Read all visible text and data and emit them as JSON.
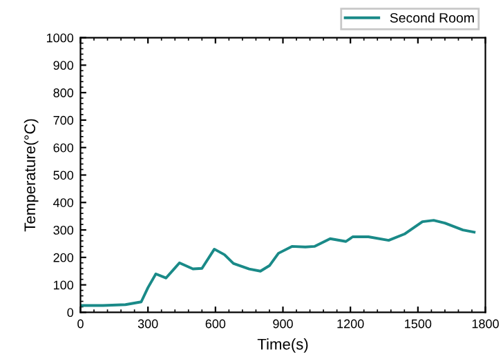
{
  "chart_data": {
    "type": "line",
    "xlabel": "Time(s)",
    "ylabel": "Temperature(°C)",
    "xlim": [
      0,
      1800
    ],
    "xticks": [
      0,
      300,
      600,
      900,
      1200,
      1500,
      1800
    ],
    "ylim": [
      0,
      1000
    ],
    "yticks": [
      0,
      100,
      200,
      300,
      400,
      500,
      600,
      700,
      800,
      900,
      1000
    ],
    "grid": false,
    "legend": "top right",
    "marker": "none",
    "line_style": "solid",
    "series": [
      {
        "name": "Second Room",
        "color": "#1a8a88",
        "x": [
          0,
          100,
          200,
          270,
          300,
          335,
          380,
          440,
          500,
          540,
          595,
          640,
          680,
          750,
          800,
          840,
          880,
          940,
          1000,
          1040,
          1110,
          1180,
          1210,
          1280,
          1370,
          1440,
          1520,
          1570,
          1620,
          1700,
          1750
        ],
        "values": [
          25,
          25,
          28,
          38,
          90,
          140,
          125,
          180,
          158,
          160,
          230,
          210,
          178,
          158,
          150,
          170,
          215,
          240,
          238,
          240,
          268,
          258,
          275,
          275,
          262,
          285,
          330,
          335,
          325,
          300,
          292
        ]
      }
    ]
  }
}
